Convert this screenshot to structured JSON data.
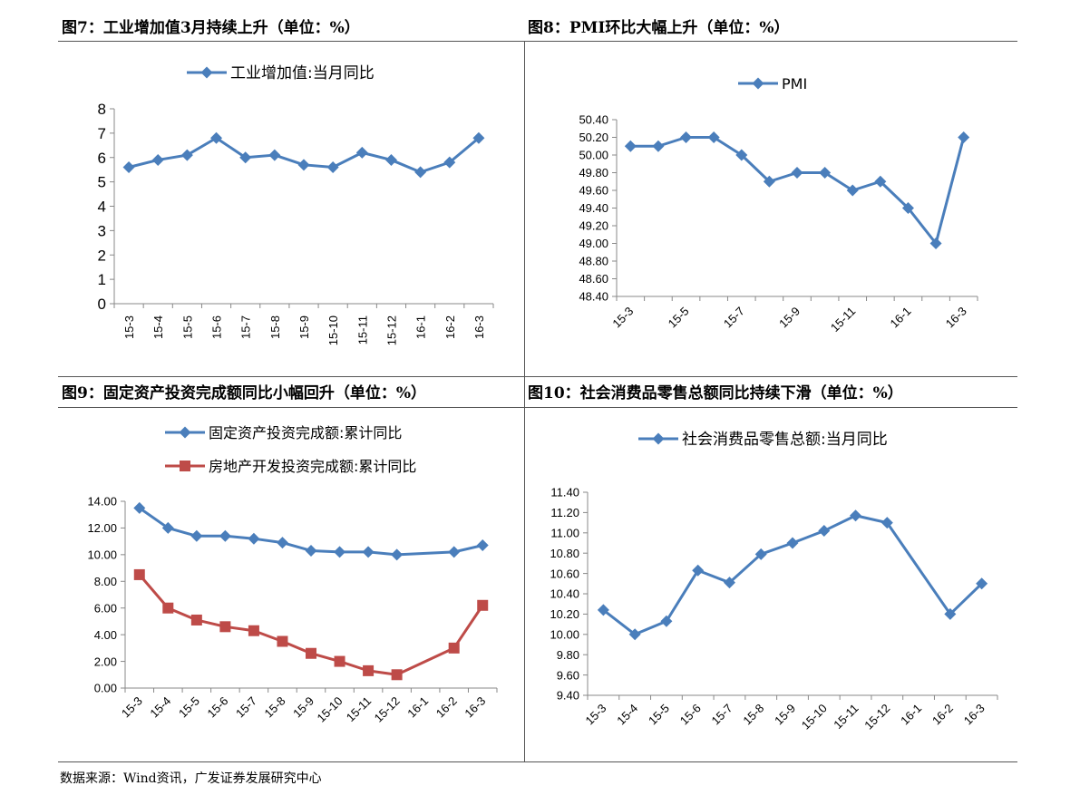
{
  "panels": [
    {
      "title": "图7：工业增加值3月持续上升（单位：%）",
      "chart_data": {
        "type": "line",
        "categories": [
          "15-3",
          "15-4",
          "15-5",
          "15-6",
          "15-7",
          "15-8",
          "15-9",
          "15-10",
          "15-11",
          "15-12",
          "16-1",
          "16-2",
          "16-3"
        ],
        "series": [
          {
            "name": "工业增加值:当月同比",
            "values": [
              5.6,
              5.9,
              6.1,
              6.8,
              6.0,
              6.1,
              5.7,
              5.6,
              6.2,
              5.9,
              5.4,
              5.8,
              6.8
            ],
            "color": "#4a7ebb",
            "marker": "diamond"
          }
        ],
        "ylim": [
          0,
          8
        ],
        "yticks": [
          "0",
          "1",
          "2",
          "3",
          "4",
          "5",
          "6",
          "7",
          "8"
        ],
        "grid": false,
        "legend": "top"
      }
    },
    {
      "title": "图8：PMI环比大幅上升（单位：%）",
      "chart_data": {
        "type": "line",
        "categories": [
          "15-3",
          "15-4",
          "15-5",
          "15-6",
          "15-7",
          "15-8",
          "15-9",
          "15-10",
          "15-11",
          "15-12",
          "16-1",
          "16-2",
          "16-3"
        ],
        "xticklabels": [
          "15-3",
          "",
          "15-5",
          "",
          "15-7",
          "",
          "15-9",
          "",
          "15-11",
          "",
          "16-1",
          "",
          "16-3"
        ],
        "series": [
          {
            "name": "PMI",
            "values": [
              50.1,
              50.1,
              50.2,
              50.2,
              50.0,
              49.7,
              49.8,
              49.8,
              49.6,
              49.7,
              49.4,
              49.0,
              50.2
            ],
            "color": "#4a7ebb",
            "marker": "diamond"
          }
        ],
        "ylim": [
          48.4,
          50.4
        ],
        "yticks": [
          "48.40",
          "48.60",
          "48.80",
          "49.00",
          "49.20",
          "49.40",
          "49.60",
          "49.80",
          "50.00",
          "50.20",
          "50.40"
        ],
        "grid": false,
        "legend": "top"
      }
    },
    {
      "title": "图9：固定资产投资完成额同比小幅回升（单位：%）",
      "chart_data": {
        "type": "line",
        "categories": [
          "15-3",
          "15-4",
          "15-5",
          "15-6",
          "15-7",
          "15-8",
          "15-9",
          "15-10",
          "15-11",
          "15-12",
          "16-1",
          "16-2",
          "16-3"
        ],
        "series": [
          {
            "name": "固定资产投资完成额:累计同比",
            "values": [
              13.5,
              12.0,
              11.4,
              11.4,
              11.2,
              10.9,
              10.3,
              10.2,
              10.2,
              10.0,
              null,
              10.2,
              10.7
            ],
            "color": "#4a7ebb",
            "marker": "diamond"
          },
          {
            "name": "房地产开发投资完成额:累计同比",
            "values": [
              8.5,
              6.0,
              5.1,
              4.6,
              4.3,
              3.5,
              2.6,
              2.0,
              1.3,
              1.0,
              null,
              3.0,
              6.2
            ],
            "color": "#be4b48",
            "marker": "square"
          }
        ],
        "ylim": [
          0,
          14
        ],
        "yticks": [
          "0.00",
          "2.00",
          "4.00",
          "6.00",
          "8.00",
          "10.00",
          "12.00",
          "14.00"
        ],
        "grid": false,
        "legend": "top"
      }
    },
    {
      "title": "图10：社会消费品零售总额同比持续下滑（单位：%）",
      "chart_data": {
        "type": "line",
        "categories": [
          "15-3",
          "15-4",
          "15-5",
          "15-6",
          "15-7",
          "15-8",
          "15-9",
          "15-10",
          "15-11",
          "15-12",
          "16-1",
          "16-2",
          "16-3"
        ],
        "series": [
          {
            "name": "社会消费品零售总额:当月同比",
            "values": [
              10.24,
              10.0,
              10.13,
              10.63,
              10.51,
              10.79,
              10.9,
              11.02,
              11.17,
              11.1,
              null,
              10.2,
              10.5
            ],
            "color": "#4a7ebb",
            "marker": "diamond"
          }
        ],
        "ylim": [
          9.4,
          11.4
        ],
        "yticks": [
          "9.40",
          "9.60",
          "9.80",
          "10.00",
          "10.20",
          "10.40",
          "10.60",
          "10.80",
          "11.00",
          "11.20",
          "11.40"
        ],
        "grid": false,
        "legend": "top"
      }
    }
  ],
  "source": "数据来源：Wind资讯，广发证券发展研究中心"
}
